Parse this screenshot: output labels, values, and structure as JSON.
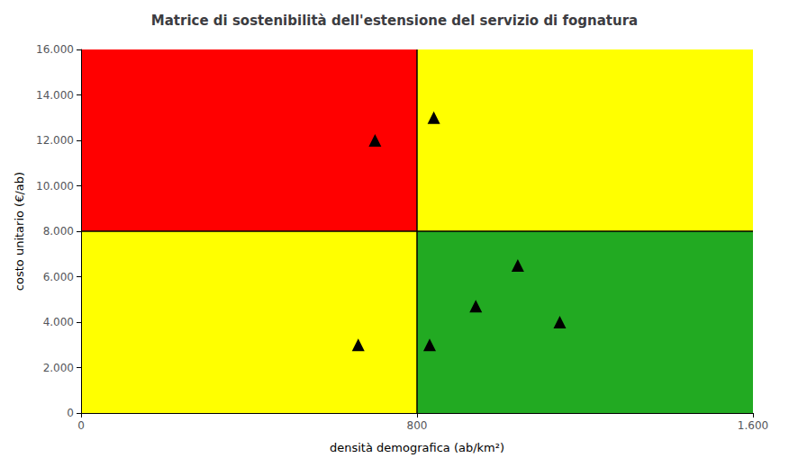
{
  "chart_data": {
    "type": "scatter",
    "title": "Matrice di sostenibilità dell'estensione del servizio di fognatura",
    "xlabel": "densità demografica (ab/km²)",
    "ylabel": "costo unitario (€/ab)",
    "x": [
      700,
      840,
      660,
      830,
      940,
      1040,
      1140
    ],
    "values": [
      12000,
      13000,
      3000,
      3000,
      4700,
      6500,
      4000
    ],
    "color": "#000000",
    "marker": "triangle",
    "xlim": [
      0,
      1600
    ],
    "ylim": [
      0,
      16000
    ],
    "xticks": [
      0,
      800,
      {
        "value": 1600,
        "label": "1.600"
      }
    ],
    "yticks": [
      0,
      {
        "value": 2000,
        "label": "2.000"
      },
      {
        "value": 4000,
        "label": "4.000"
      },
      {
        "value": 6000,
        "label": "6.000"
      },
      {
        "value": 8000,
        "label": "8.000"
      },
      {
        "value": 10000,
        "label": "10.000"
      },
      {
        "value": 12000,
        "label": "12.000"
      },
      {
        "value": 14000,
        "label": "14.000"
      },
      {
        "value": 16000,
        "label": "16.000"
      }
    ],
    "x_threshold": 800,
    "y_threshold": 8000,
    "colors": [
      "#FFFF00",
      "#FF0000",
      "#22AA22",
      "#FFFF00"
    ],
    "grid": false
  }
}
